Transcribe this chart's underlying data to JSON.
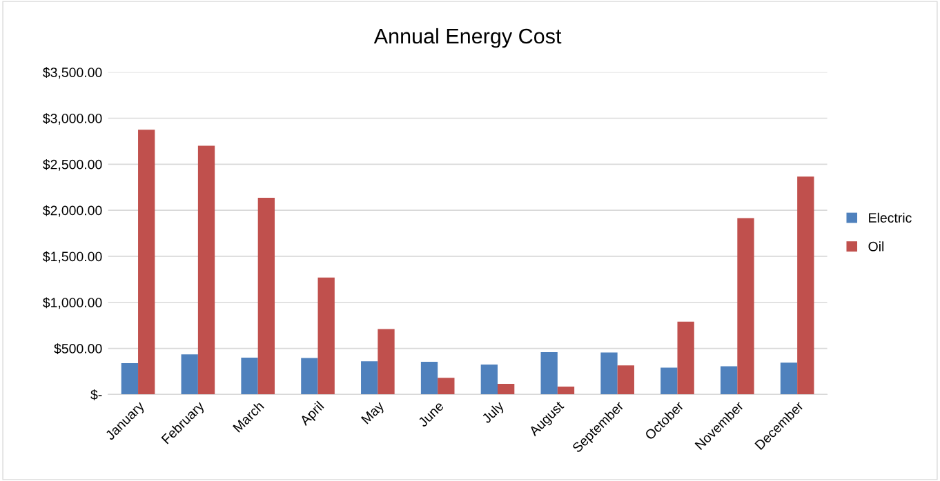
{
  "chart_data": {
    "type": "bar",
    "title": "Annual Energy Cost",
    "categories": [
      "January",
      "February",
      "March",
      "April",
      "May",
      "June",
      "July",
      "August",
      "September",
      "October",
      "November",
      "December"
    ],
    "series": [
      {
        "name": "Electric",
        "color": "#4f81bd",
        "values": [
          340,
          435,
          400,
          395,
          360,
          355,
          325,
          460,
          455,
          290,
          305,
          345
        ]
      },
      {
        "name": "Oil",
        "color": "#c0504d",
        "values": [
          2875,
          2700,
          2135,
          1270,
          710,
          180,
          115,
          85,
          315,
          790,
          1915,
          2365
        ]
      }
    ],
    "ylim": [
      0,
      3500
    ],
    "yticks": [
      {
        "value": 0,
        "label": "$-"
      },
      {
        "value": 500,
        "label": "$500.00"
      },
      {
        "value": 1000,
        "label": "$1,000.00"
      },
      {
        "value": 1500,
        "label": "$1,500.00"
      },
      {
        "value": 2000,
        "label": "$2,000.00"
      },
      {
        "value": 2500,
        "label": "$2,500.00"
      },
      {
        "value": 3000,
        "label": "$3,000.00"
      },
      {
        "value": 3500,
        "label": "$3,500.00"
      }
    ],
    "grid": "y",
    "legend": "right"
  }
}
